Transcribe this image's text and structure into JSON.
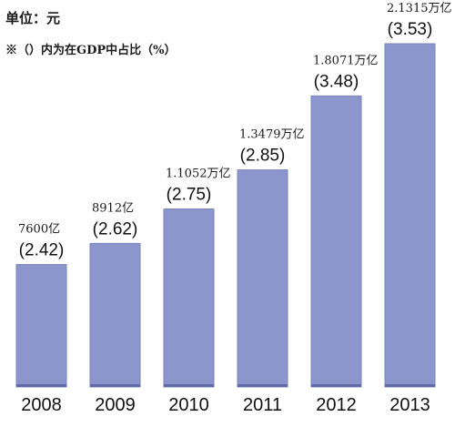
{
  "notes": {
    "unit": "单位：元",
    "ratio_note": "※（）内为在GDP中占比（%）"
  },
  "colors": {
    "bar": "#8c95cc",
    "bar_edge": "#7a84be",
    "bar_base": "#5f6aa6",
    "text": "#111111"
  },
  "chart_data": {
    "type": "bar",
    "title": "",
    "xlabel": "",
    "ylabel": "",
    "categories": [
      "2008",
      "2009",
      "2010",
      "2011",
      "2012",
      "2013"
    ],
    "values": [
      7600,
      8912,
      11052,
      13479,
      18071,
      21315
    ],
    "value_labels": [
      "7600亿",
      "8912亿",
      "1.1052万亿",
      "1.3479万亿",
      "1.8071万亿",
      "2.1315万亿"
    ],
    "gdp_share_labels": [
      "(2.42)",
      "(2.62)",
      "(2.75)",
      "(2.85)",
      "(3.48)",
      "(3.53)"
    ],
    "ylim": [
      0,
      21315
    ],
    "grid": false,
    "legend": "none"
  }
}
